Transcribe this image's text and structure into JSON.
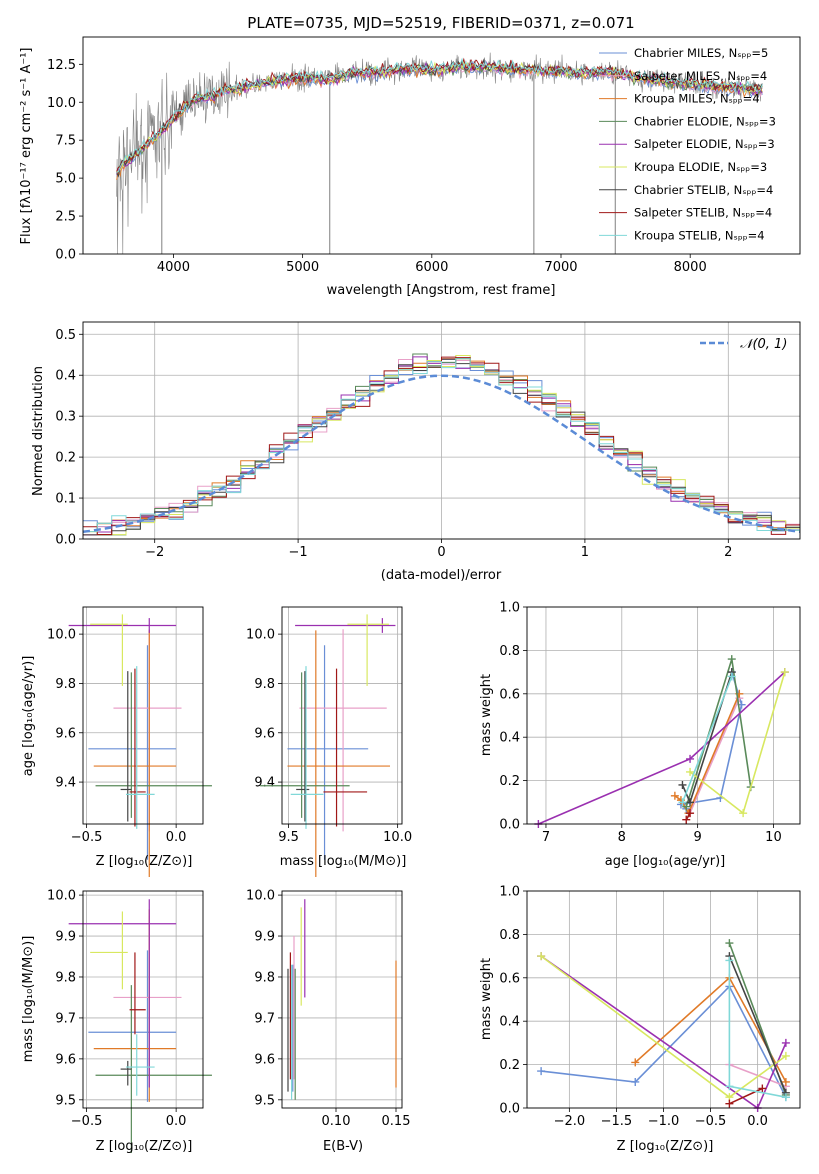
{
  "colors": {
    "chabrier_miles": "#6a8fd6",
    "salpeter_miles": "#e8a0c8",
    "kroupa_miles": "#e07a28",
    "chabrier_elodie": "#5a8a5a",
    "salpeter_elodie": "#9a30b0",
    "kroupa_elodie": "#d8e860",
    "chabrier_stelib": "#444444",
    "salpeter_stelib": "#a01818",
    "kroupa_stelib": "#80d8d8",
    "observed": "#808080",
    "normal": "#5b8bd6"
  },
  "chart_data": [
    {
      "id": "spectrum",
      "type": "line",
      "title": "PLATE=0735, MJD=52519, FIBERID=0371, z=0.071",
      "xlabel": "wavelength [Angstrom, rest frame]",
      "ylabel": "Flux [fλ10⁻¹⁷ erg cm⁻² s⁻¹ A⁻¹]",
      "xlim": [
        3300,
        8850
      ],
      "ylim": [
        0,
        14.3
      ],
      "xticks": [
        4000,
        5000,
        6000,
        7000,
        8000
      ],
      "yticks": [
        0.0,
        2.5,
        5.0,
        7.5,
        10.0,
        12.5
      ],
      "grid": false,
      "legend_position": "right",
      "legend": [
        "Chabrier MILES, Nₛₚₚ=5",
        "Salpeter MILES, Nₛₚₚ=4",
        "Kroupa MILES, Nₛₚₚ=4",
        "Chabrier ELODIE, Nₛₚₚ=3",
        "Salpeter ELODIE, Nₛₚₚ=3",
        "Kroupa ELODIE, Nₛₚₚ=3",
        "Chabrier STELIB, Nₛₚₚ=4",
        "Salpeter STELIB, Nₛₚₚ=4",
        "Kroupa STELIB, Nₛₚₚ=4"
      ],
      "observed_continuum": [
        [
          3560,
          5.3
        ],
        [
          3600,
          5.8
        ],
        [
          3700,
          6.6
        ],
        [
          3800,
          7.3
        ],
        [
          3900,
          8.0
        ],
        [
          4000,
          9.0
        ],
        [
          4100,
          9.8
        ],
        [
          4200,
          10.3
        ],
        [
          4300,
          10.4
        ],
        [
          4400,
          10.8
        ],
        [
          4500,
          10.9
        ],
        [
          4600,
          11.1
        ],
        [
          4800,
          11.4
        ],
        [
          5000,
          11.6
        ],
        [
          5200,
          11.5
        ],
        [
          5400,
          11.9
        ],
        [
          5600,
          12.0
        ],
        [
          5800,
          12.2
        ],
        [
          6000,
          12.1
        ],
        [
          6200,
          12.3
        ],
        [
          6400,
          12.3
        ],
        [
          6600,
          12.2
        ],
        [
          6800,
          12.1
        ],
        [
          7000,
          12.0
        ],
        [
          7200,
          11.9
        ],
        [
          7400,
          12.0
        ],
        [
          7600,
          11.6
        ],
        [
          7800,
          11.4
        ],
        [
          8000,
          11.2
        ],
        [
          8200,
          11.0
        ],
        [
          8400,
          10.9
        ],
        [
          8560,
          10.8
        ]
      ],
      "drops": [
        [
          3910,
          0.0
        ],
        [
          5210,
          0.0
        ],
        [
          6790,
          0.0
        ],
        [
          7420,
          0.0
        ]
      ]
    },
    {
      "id": "residuals",
      "type": "bar",
      "xlabel": "(data-model)/error",
      "ylabel": "Normed distribution",
      "xlim": [
        -2.5,
        2.5
      ],
      "ylim": [
        0,
        0.53
      ],
      "xticks": [
        -2,
        -1,
        0,
        1,
        2
      ],
      "yticks": [
        0.0,
        0.1,
        0.2,
        0.3,
        0.4,
        0.5
      ],
      "grid": true,
      "legend_position": "top-right",
      "legend": [
        "𝒩(0, 1)"
      ],
      "bin_width": 0.1,
      "bin_start": -2.5
    },
    {
      "id": "age_vs_z",
      "type": "scatter",
      "xlabel": "Z [log₁₀(Z/Z⊙)]",
      "ylabel": "age  [log₁₀(age/yr)]",
      "xlim": [
        -0.52,
        0.15
      ],
      "ylim": [
        9.23,
        10.11
      ],
      "xticks": [
        -0.5,
        0.0
      ],
      "yticks": [
        9.4,
        9.6,
        9.8,
        10.0
      ],
      "grid": true
    },
    {
      "id": "age_vs_mass",
      "type": "scatter",
      "xlabel": "mass [log₁₀(M/M⊙)]",
      "ylabel": "",
      "xlim": [
        9.47,
        10.02
      ],
      "ylim": [
        9.23,
        10.11
      ],
      "xticks": [
        9.5,
        10.0
      ],
      "yticks": [
        9.4,
        9.6,
        9.8,
        10.0
      ],
      "grid": true
    },
    {
      "id": "mw_vs_age",
      "type": "line",
      "xlabel": "age  [log₁₀(age/yr)]",
      "ylabel": "mass weight",
      "xlim": [
        6.75,
        10.35
      ],
      "ylim": [
        0,
        1.0
      ],
      "xticks": [
        7,
        8,
        9,
        10
      ],
      "yticks": [
        0.0,
        0.2,
        0.4,
        0.6,
        0.8,
        1.0
      ],
      "grid": true
    },
    {
      "id": "mass_vs_z",
      "type": "scatter",
      "xlabel": "Z [log₁₀(Z/Z⊙)]",
      "ylabel": "mass [log₁₀(M/M⊙)]",
      "xlim": [
        -0.52,
        0.15
      ],
      "ylim": [
        9.48,
        10.01
      ],
      "xticks": [
        -0.5,
        0.0
      ],
      "yticks": [
        9.5,
        9.6,
        9.7,
        9.8,
        9.9,
        10.0
      ],
      "grid": true
    },
    {
      "id": "mass_vs_ebv",
      "type": "scatter",
      "xlabel": "E(B-V)",
      "ylabel": "",
      "xlim": [
        0.055,
        0.155
      ],
      "ylim": [
        9.48,
        10.01
      ],
      "xticks": [
        0.1,
        0.15
      ],
      "yticks": [
        9.5,
        9.6,
        9.7,
        9.8,
        9.9,
        10.0
      ],
      "grid": true
    },
    {
      "id": "mw_vs_z",
      "type": "line",
      "xlabel": "Z [log₁₀(Z/Z⊙)]",
      "ylabel": "mass weight",
      "xlim": [
        -2.45,
        0.45
      ],
      "ylim": [
        0,
        1.0
      ],
      "xticks": [
        -2.0,
        -1.5,
        -1.0,
        -0.5,
        0.0
      ],
      "yticks": [
        0.0,
        0.2,
        0.4,
        0.6,
        0.8,
        1.0
      ],
      "grid": true
    }
  ],
  "models": [
    {
      "key": "chabrier_miles",
      "z": -0.16,
      "zerr": [
        0.33,
        0.16
      ],
      "age": 9.535,
      "ageerr": [
        0.45,
        0.42
      ],
      "mass": 9.665,
      "masserr": [
        0.17,
        0.2
      ],
      "ebv": 0.064,
      "ebverr": [
        9.52,
        9.83
      ],
      "mw_age": [
        [
          8.85,
          0.07
        ],
        [
          8.78,
          0.09
        ],
        [
          9.3,
          0.12
        ],
        [
          9.58,
          0.55
        ],
        [
          9.45,
          0.7
        ]
      ],
      "mw_z": [
        [
          -2.3,
          0.17
        ],
        [
          -1.3,
          0.12
        ],
        [
          -0.3,
          0.56
        ],
        [
          0.3,
          0.05
        ]
      ]
    },
    {
      "key": "salpeter_miles",
      "z": -0.15,
      "zerr": [
        0.2,
        0.18
      ],
      "age": 9.7,
      "ageerr": [
        0.5,
        0.32
      ],
      "mass": 9.75,
      "masserr": [
        0.2,
        0.2
      ],
      "ebv": 0.065,
      "ebverr": [
        9.55,
        9.9
      ],
      "mw_age": [
        [
          8.9,
          0.05
        ],
        [
          9.55,
          0.58
        ]
      ],
      "mw_z": [
        [
          -0.3,
          0.2
        ],
        [
          0.3,
          0.1
        ]
      ]
    },
    {
      "key": "kroupa_miles",
      "z": -0.15,
      "zerr": [
        0.31,
        0.15
      ],
      "age": 9.465,
      "ageerr": [
        0.45,
        0.55
      ],
      "mass": 9.625,
      "masserr": [
        0.13,
        0.34
      ],
      "ebv": 0.15,
      "ebverr": [
        9.53,
        9.84
      ],
      "mw_age": [
        [
          8.7,
          0.13
        ],
        [
          8.78,
          0.11
        ],
        [
          8.88,
          0.05
        ],
        [
          9.55,
          0.6
        ]
      ],
      "mw_z": [
        [
          -1.3,
          0.21
        ],
        [
          -0.3,
          0.6
        ],
        [
          0.3,
          0.12
        ]
      ]
    },
    {
      "key": "chabrier_elodie",
      "z": -0.25,
      "zerr": [
        0.2,
        0.45
      ],
      "age": 9.385,
      "ageerr": [
        0.13,
        0.46
      ],
      "mass": 9.56,
      "masserr": [
        0.19,
        0.22
      ],
      "ebv": 0.066,
      "ebverr": [
        9.5,
        9.82
      ],
      "mw_age": [
        [
          8.85,
          0.08
        ],
        [
          9.45,
          0.76
        ],
        [
          9.7,
          0.17
        ]
      ],
      "mw_z": [
        [
          -0.3,
          0.76
        ],
        [
          0.3,
          0.06
        ]
      ]
    },
    {
      "key": "salpeter_elodie",
      "z": -0.15,
      "zerr": [
        0.45,
        0.15
      ],
      "age": 10.035,
      "ageerr": [
        0.03,
        0.03
      ],
      "mass": 9.93,
      "masserr": [
        0.4,
        0.06
      ],
      "ebv": 0.074,
      "ebverr": [
        9.75,
        9.99
      ],
      "mw_age": [
        [
          6.9,
          0.0
        ],
        [
          8.9,
          0.3
        ],
        [
          10.15,
          0.7
        ]
      ],
      "mw_z": [
        [
          -2.3,
          0.7
        ],
        [
          0.0,
          0.0
        ],
        [
          0.3,
          0.3
        ]
      ]
    },
    {
      "key": "kroupa_elodie",
      "z": -0.3,
      "zerr": [
        0.18,
        0.03
      ],
      "age": 10.04,
      "ageerr": [
        0.25,
        0.04
      ],
      "mass": 9.86,
      "masserr": [
        0.09,
        0.1
      ],
      "ebv": 0.071,
      "ebverr": [
        9.73,
        9.97
      ],
      "mw_age": [
        [
          8.9,
          0.24
        ],
        [
          9.6,
          0.05
        ],
        [
          10.15,
          0.7
        ]
      ],
      "mw_z": [
        [
          -2.3,
          0.7
        ],
        [
          -0.3,
          0.05
        ],
        [
          0.3,
          0.24
        ]
      ]
    },
    {
      "key": "chabrier_stelib",
      "z": -0.27,
      "zerr": [
        0.04,
        0.02
      ],
      "age": 9.37,
      "ageerr": [
        0.13,
        0.48
      ],
      "mass": 9.575,
      "masserr": [
        0.04,
        0.02
      ],
      "ebv": 0.06,
      "ebverr": [
        9.52,
        9.82
      ],
      "mw_age": [
        [
          8.8,
          0.18
        ],
        [
          8.9,
          0.1
        ],
        [
          9.45,
          0.7
        ]
      ],
      "mw_z": [
        [
          -0.3,
          0.7
        ],
        [
          0.3,
          0.07
        ]
      ]
    },
    {
      "key": "salpeter_stelib",
      "z": -0.23,
      "zerr": [
        0.03,
        0.06
      ],
      "age": 9.36,
      "ageerr": [
        0.14,
        0.5
      ],
      "mass": 9.72,
      "masserr": [
        0.06,
        0.14
      ],
      "ebv": 0.062,
      "ebverr": [
        9.55,
        9.86
      ],
      "mw_age": [
        [
          8.85,
          0.02
        ],
        [
          8.9,
          0.05
        ]
      ],
      "mw_z": [
        [
          -0.3,
          0.02
        ],
        [
          0.05,
          0.09
        ]
      ]
    },
    {
      "key": "kroupa_stelib",
      "z": -0.22,
      "zerr": [
        0.06,
        0.1
      ],
      "age": 9.35,
      "ageerr": [
        0.14,
        0.52
      ],
      "mass": 9.58,
      "masserr": [
        0.07,
        0.08
      ],
      "ebv": 0.063,
      "ebverr": [
        9.5,
        9.83
      ],
      "mw_age": [
        [
          8.8,
          0.1
        ],
        [
          9.45,
          0.68
        ]
      ],
      "mw_z": [
        [
          -0.3,
          0.68
        ],
        [
          -0.3,
          0.1
        ],
        [
          0.3,
          0.05
        ]
      ]
    }
  ]
}
